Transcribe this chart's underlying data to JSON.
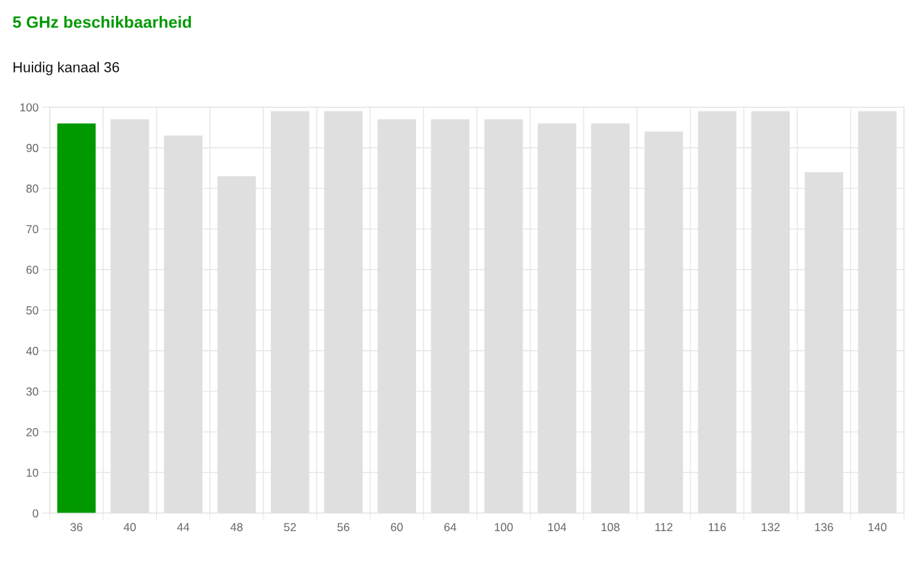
{
  "chart_data": {
    "type": "bar",
    "title": "5 GHz beschikbaarheid",
    "subtitle": "Huidig kanaal 36",
    "categories": [
      "36",
      "40",
      "44",
      "48",
      "52",
      "56",
      "60",
      "64",
      "100",
      "104",
      "108",
      "112",
      "116",
      "132",
      "136",
      "140"
    ],
    "values": [
      96,
      97,
      93,
      83,
      99,
      99,
      97,
      97,
      97,
      96,
      96,
      94,
      99,
      99,
      84,
      99
    ],
    "colors": [
      "#009900",
      "#dfdfdf",
      "#dfdfdf",
      "#dfdfdf",
      "#dfdfdf",
      "#dfdfdf",
      "#dfdfdf",
      "#dfdfdf",
      "#dfdfdf",
      "#dfdfdf",
      "#dfdfdf",
      "#dfdfdf",
      "#dfdfdf",
      "#dfdfdf",
      "#dfdfdf",
      "#dfdfdf"
    ],
    "ylim": [
      0,
      100
    ],
    "yticks": [
      0,
      10,
      20,
      30,
      40,
      50,
      60,
      70,
      80,
      90,
      100
    ],
    "grid": true
  }
}
